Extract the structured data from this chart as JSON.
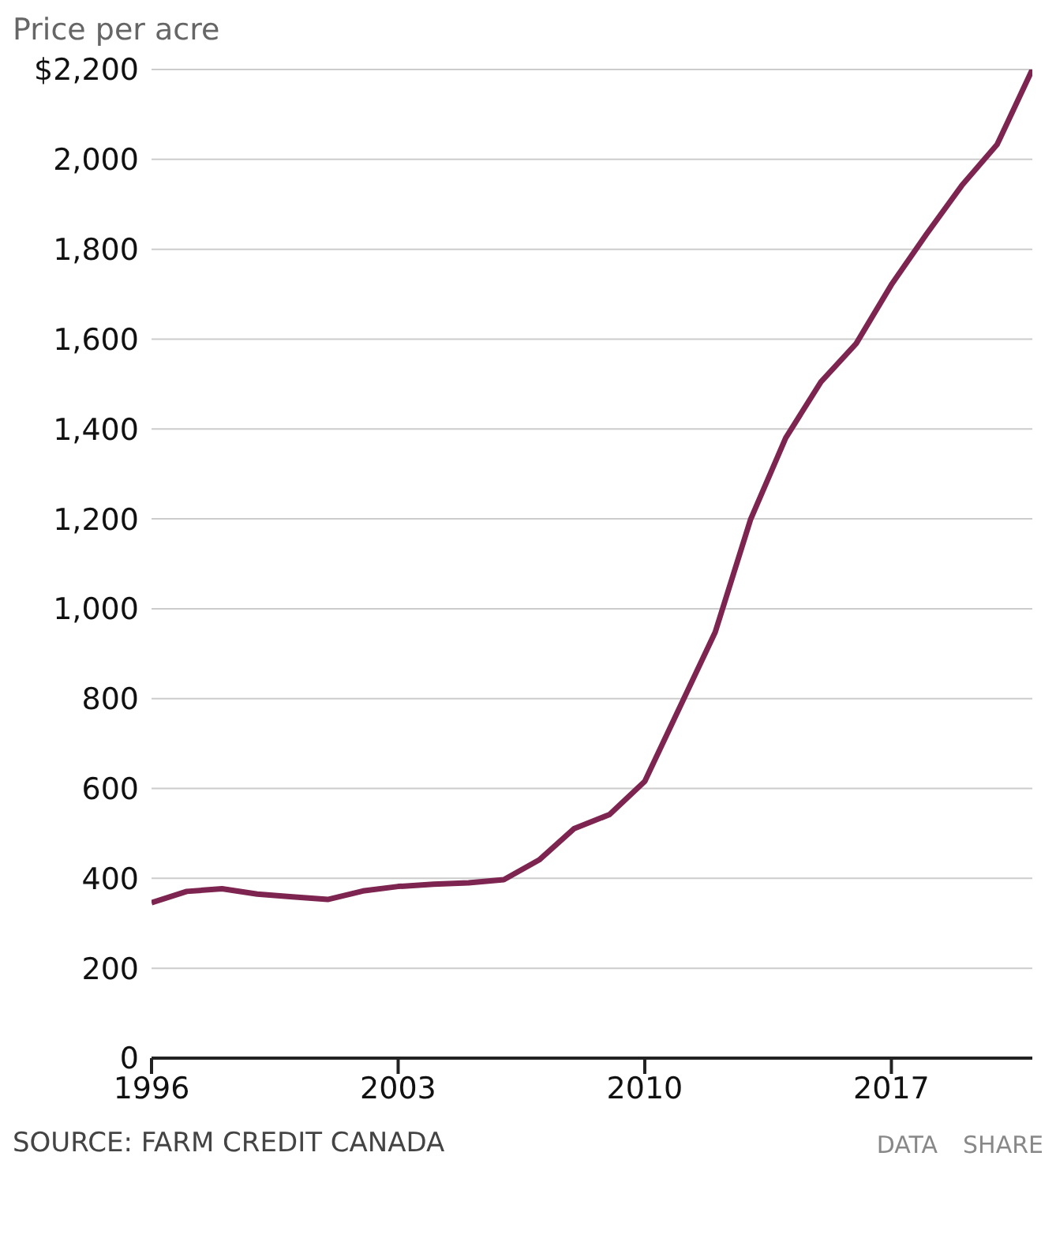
{
  "chart_data": {
    "type": "line",
    "ylabel": "Price per acre",
    "x": [
      1996,
      1997,
      1998,
      1999,
      2000,
      2001,
      2002,
      2003,
      2004,
      2005,
      2006,
      2007,
      2008,
      2009,
      2010,
      2011,
      2012,
      2013,
      2014,
      2015,
      2016,
      2017,
      2018,
      2019,
      2020,
      2021
    ],
    "series": [
      {
        "color": "#7d2450",
        "values": [
          346,
          371,
          377,
          365,
          359,
          353,
          372,
          382,
          387,
          390,
          397,
          441,
          511,
          542,
          616,
          782,
          948,
          1198,
          1380,
          1505,
          1590,
          1721,
          1834,
          1942,
          2033,
          2200
        ]
      }
    ],
    "xlim": [
      1996,
      2021
    ],
    "xticks": [
      1996,
      2003,
      2010,
      2017
    ],
    "ylim": [
      0,
      2200
    ],
    "yticks": [
      0,
      200,
      400,
      600,
      800,
      {
        "value": 1000,
        "label": "1,000"
      },
      {
        "value": 1200,
        "label": "1,200"
      },
      {
        "value": 1400,
        "label": "1,400"
      },
      {
        "value": 1600,
        "label": "1,600"
      },
      {
        "value": 1800,
        "label": "1,800"
      },
      {
        "value": 2000,
        "label": "2,000"
      },
      {
        "value": 2200,
        "label": "$2,200"
      }
    ],
    "grid": "y",
    "marker": "none",
    "line_style": "solid",
    "annotations": [
      "SOURCE: FARM CREDIT CANADA",
      "DATA",
      "SHARE"
    ]
  }
}
